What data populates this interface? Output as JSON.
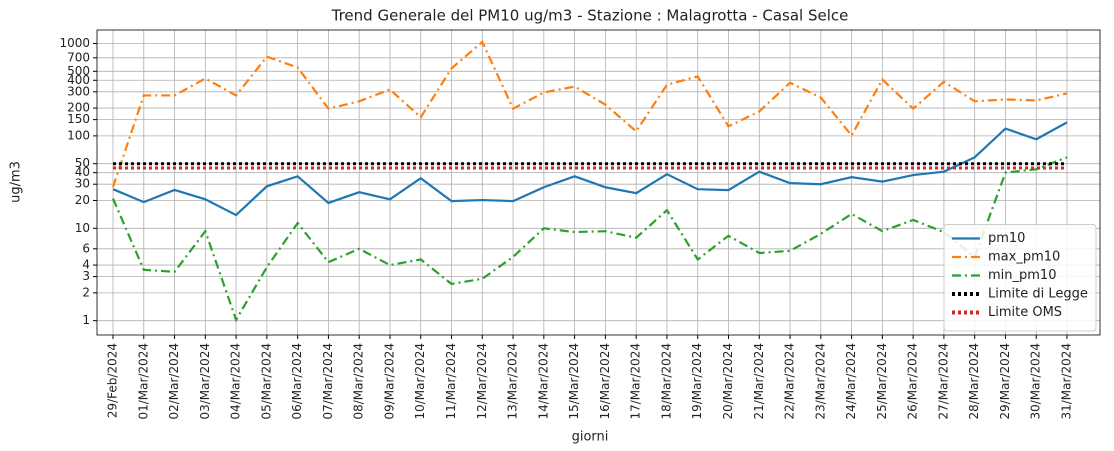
{
  "chart_data": {
    "type": "line",
    "title": "Trend Generale del PM10 ug/m3 - Stazione : Malagrotta - Casal Selce",
    "xlabel": "giorni",
    "ylabel": "ug/m3",
    "categories": [
      "29/Feb/2024",
      "01/Mar/2024",
      "02/Mar/2024",
      "03/Mar/2024",
      "04/Mar/2024",
      "05/Mar/2024",
      "06/Mar/2024",
      "07/Mar/2024",
      "08/Mar/2024",
      "09/Mar/2024",
      "10/Mar/2024",
      "11/Mar/2024",
      "12/Mar/2024",
      "13/Mar/2024",
      "14/Mar/2024",
      "15/Mar/2024",
      "16/Mar/2024",
      "17/Mar/2024",
      "18/Mar/2024",
      "19/Mar/2024",
      "20/Mar/2024",
      "21/Mar/2024",
      "22/Mar/2024",
      "23/Mar/2024",
      "24/Mar/2024",
      "25/Mar/2024",
      "26/Mar/2024",
      "27/Mar/2024",
      "28/Mar/2024",
      "29/Mar/2024",
      "30/Mar/2024",
      "31/Mar/2024"
    ],
    "series": [
      {
        "name": "pm10",
        "color": "#1f77b4",
        "linestyle": "solid",
        "values": [
          26.5,
          19.2,
          26,
          20.6,
          13.9,
          28.5,
          36.5,
          18.8,
          24.6,
          20.6,
          34.8,
          19.7,
          20.2,
          19.7,
          27.8,
          36.5,
          27.8,
          24,
          38.5,
          26.5,
          25.9,
          41,
          30.8,
          30,
          35.8,
          32,
          37.7,
          41,
          58.6,
          120,
          92,
          140
        ]
      },
      {
        "name": "max_pm10",
        "color": "#ff7f0e",
        "linestyle": "dashdot",
        "values": [
          28,
          274,
          274,
          418,
          274,
          720,
          550,
          197,
          237,
          318,
          159,
          538,
          1040,
          197,
          295,
          342,
          218,
          112,
          358,
          440,
          127,
          184,
          376,
          260,
          101,
          408,
          197,
          385,
          237,
          248,
          242,
          288
        ]
      },
      {
        "name": "min_pm10",
        "color": "#2ca02c",
        "linestyle": "dashdot",
        "values": [
          21,
          3.55,
          3.38,
          9.3,
          1.02,
          3.8,
          11.4,
          4.3,
          6,
          4,
          4.6,
          2.5,
          2.84,
          4.9,
          10,
          9.1,
          9.3,
          7.9,
          15.7,
          4.6,
          8.3,
          5.4,
          5.7,
          8.7,
          14.3,
          9.3,
          12.3,
          9.1,
          4.9,
          40,
          43.5,
          58.6
        ]
      },
      {
        "name": "Limite di Legge",
        "color": "#000000",
        "linestyle": "dotted",
        "values": [
          50,
          50,
          50,
          50,
          50,
          50,
          50,
          50,
          50,
          50,
          50,
          50,
          50,
          50,
          50,
          50,
          50,
          50,
          50,
          50,
          50,
          50,
          50,
          50,
          50,
          50,
          50,
          50,
          50,
          50,
          50,
          50
        ]
      },
      {
        "name": "Limite OMS",
        "color": "#d62728",
        "linestyle": "dotted",
        "values": [
          45,
          45,
          45,
          45,
          45,
          45,
          45,
          45,
          45,
          45,
          45,
          45,
          45,
          45,
          45,
          45,
          45,
          45,
          45,
          45,
          45,
          45,
          45,
          45,
          45,
          45,
          45,
          45,
          45,
          45,
          45,
          45
        ]
      }
    ],
    "ylim": [
      0.7,
      1400
    ],
    "yscale": "log",
    "yticks": [
      1,
      2,
      3,
      4,
      6,
      10,
      20,
      30,
      40,
      50,
      100,
      150,
      200,
      300,
      400,
      500,
      700,
      1000
    ],
    "grid": true,
    "legend": "lower right"
  }
}
